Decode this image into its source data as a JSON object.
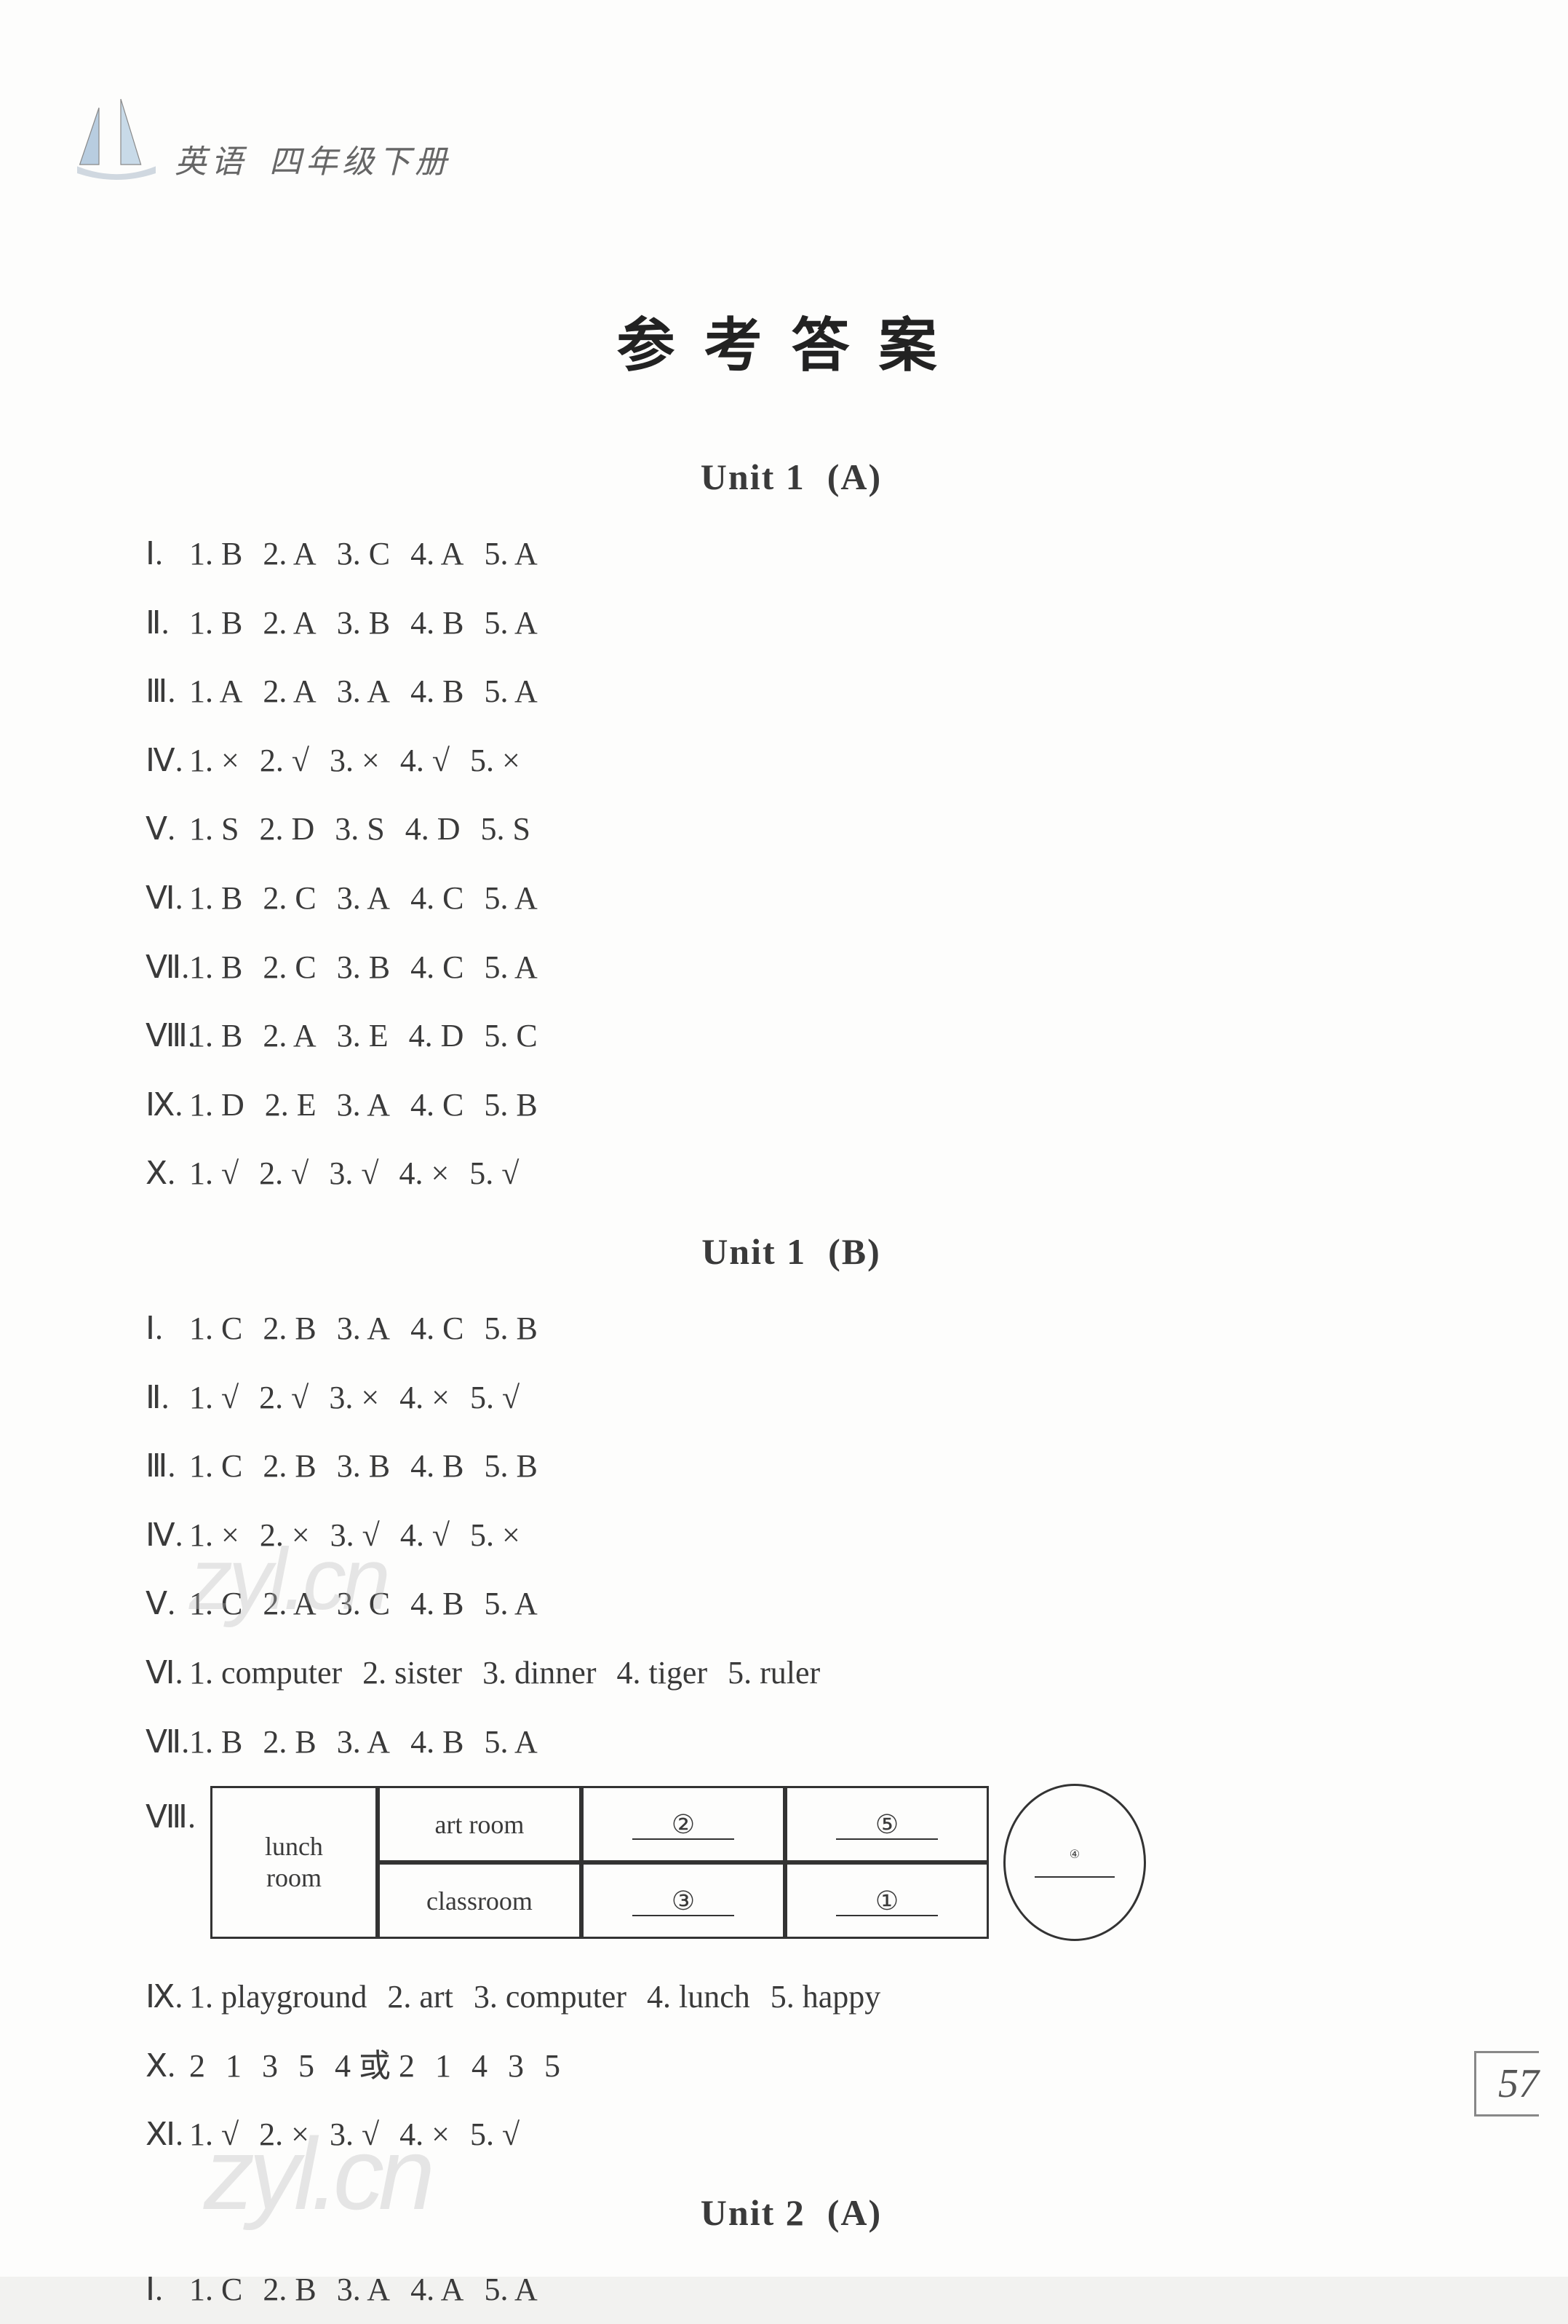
{
  "header": {
    "subject": "英语",
    "grade": "四年级下册"
  },
  "title": "参考答案",
  "page_number": "57",
  "watermark": "zyl.cn",
  "units": [
    {
      "heading": "Unit 1",
      "variant": "(A)",
      "lines": [
        {
          "roman": "Ⅰ",
          "items": [
            "1. B",
            "2. A",
            "3. C",
            "4. A",
            "5. A"
          ]
        },
        {
          "roman": "Ⅱ",
          "items": [
            "1. B",
            "2. A",
            "3. B",
            "4. B",
            "5. A"
          ]
        },
        {
          "roman": "Ⅲ",
          "items": [
            "1. A",
            "2. A",
            "3. A",
            "4. B",
            "5. A"
          ]
        },
        {
          "roman": "Ⅳ",
          "items": [
            "1. ×",
            "2. √",
            "3. ×",
            "4. √",
            "5. ×"
          ]
        },
        {
          "roman": "Ⅴ",
          "items": [
            "1. S",
            "2. D",
            "3. S",
            "4. D",
            "5. S"
          ]
        },
        {
          "roman": "Ⅵ",
          "items": [
            "1. B",
            "2. C",
            "3. A",
            "4. C",
            "5. A"
          ]
        },
        {
          "roman": "Ⅶ",
          "items": [
            "1. B",
            "2. C",
            "3. B",
            "4. C",
            "5. A"
          ]
        },
        {
          "roman": "Ⅷ",
          "items": [
            "1. B",
            "2. A",
            "3. E",
            "4. D",
            "5. C"
          ]
        },
        {
          "roman": "Ⅸ",
          "items": [
            "1. D",
            "2. E",
            "3. A",
            "4. C",
            "5. B"
          ]
        },
        {
          "roman": "Ⅹ",
          "items": [
            "1. √",
            "2. √",
            "3. √",
            "4. ×",
            "5. √"
          ]
        }
      ]
    },
    {
      "heading": "Unit 1",
      "variant": "(B)",
      "lines": [
        {
          "roman": "Ⅰ",
          "items": [
            "1. C",
            "2. B",
            "3. A",
            "4. C",
            "5. B"
          ]
        },
        {
          "roman": "Ⅱ",
          "items": [
            "1. √",
            "2. √",
            "3. ×",
            "4. ×",
            "5. √"
          ]
        },
        {
          "roman": "Ⅲ",
          "items": [
            "1. C",
            "2. B",
            "3. B",
            "4. B",
            "5. B"
          ]
        },
        {
          "roman": "Ⅳ",
          "items": [
            "1. ×",
            "2. ×",
            "3. √",
            "4. √",
            "5. ×"
          ]
        },
        {
          "roman": "Ⅴ",
          "items": [
            "1. C",
            "2. A",
            "3. C",
            "4. B",
            "5. A"
          ]
        },
        {
          "roman": "Ⅵ",
          "items": [
            "1. computer",
            "2. sister",
            "3. dinner",
            "4. tiger",
            "5. ruler"
          ]
        },
        {
          "roman": "Ⅶ",
          "items": [
            "1. B",
            "2. B",
            "3. A",
            "4. B",
            "5. A"
          ]
        }
      ],
      "diagram": {
        "roman": "Ⅷ",
        "left_box": [
          "lunch",
          "room"
        ],
        "grid": [
          [
            "art room",
            "②",
            "⑤"
          ],
          [
            "classroom",
            "③",
            "①"
          ]
        ],
        "oval": "④"
      },
      "lines_after": [
        {
          "roman": "Ⅸ",
          "items": [
            "1. playground",
            "2. art",
            "3. computer",
            "4. lunch",
            "5. happy"
          ]
        },
        {
          "roman": "Ⅹ",
          "items": [
            "2",
            "1",
            "3",
            "5",
            "4 或 2",
            "1",
            "4",
            "3",
            "5"
          ]
        },
        {
          "roman": "Ⅺ",
          "items": [
            "1. √",
            "2. ×",
            "3. √",
            "4. ×",
            "5. √"
          ]
        }
      ]
    },
    {
      "heading": "Unit 2",
      "variant": "(A)",
      "lines": [
        {
          "roman": "Ⅰ",
          "items": [
            "1. C",
            "2. B",
            "3. A",
            "4. A",
            "5. A"
          ]
        }
      ]
    }
  ],
  "colors": {
    "bg": "#fdfdfc",
    "text": "#3a3a3a",
    "border": "#333333",
    "watermark": "#bbbbbb",
    "header": "#666666"
  }
}
